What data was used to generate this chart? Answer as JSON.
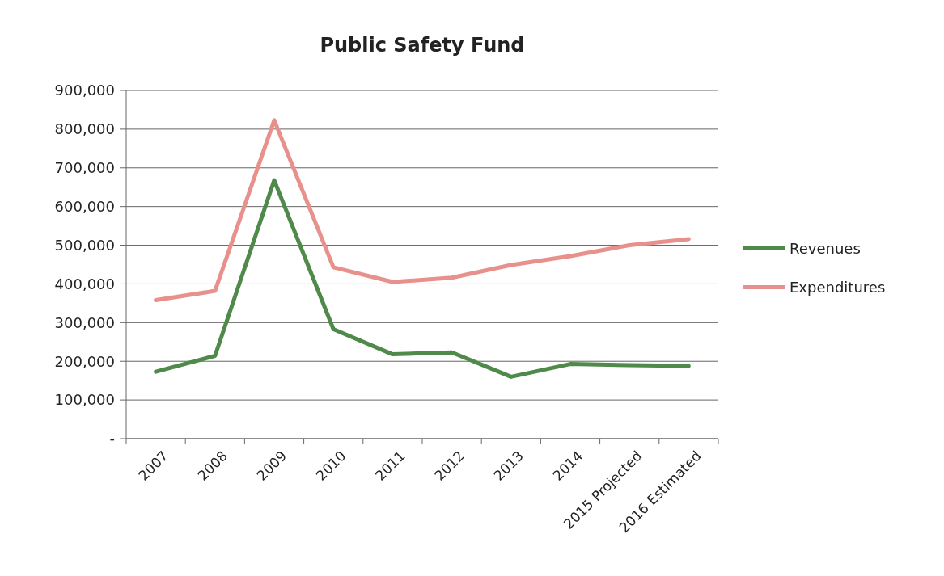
{
  "chart_data": {
    "type": "line",
    "title": "Public Safety Fund",
    "categories": [
      "2007",
      "2008",
      "2009",
      "2010",
      "2011",
      "2012",
      "2013",
      "2014",
      "2015 Projected",
      "2016 Estimated"
    ],
    "series": [
      {
        "name": "Revenues",
        "color": "#4f8a4a",
        "values": [
          173000,
          214000,
          668000,
          283000,
          218000,
          223000,
          160000,
          193000,
          190000,
          188000
        ]
      },
      {
        "name": "Expenditures",
        "color": "#e8908c",
        "values": [
          358000,
          382000,
          823000,
          443000,
          405000,
          416000,
          449000,
          472000,
          500000,
          516000
        ]
      }
    ],
    "ylim": [
      0,
      900000
    ],
    "yticks": [
      {
        "value": 0,
        "label": "-"
      },
      {
        "value": 100000,
        "label": "100,000"
      },
      {
        "value": 200000,
        "label": "200,000"
      },
      {
        "value": 300000,
        "label": "300,000"
      },
      {
        "value": 400000,
        "label": "400,000"
      },
      {
        "value": 500000,
        "label": "500,000"
      },
      {
        "value": 600000,
        "label": "600,000"
      },
      {
        "value": 700000,
        "label": "700,000"
      },
      {
        "value": 800000,
        "label": "800,000"
      },
      {
        "value": 900000,
        "label": "900,000"
      }
    ],
    "grid": "y",
    "legend": "right",
    "marker": "none",
    "line_style": "solid"
  }
}
